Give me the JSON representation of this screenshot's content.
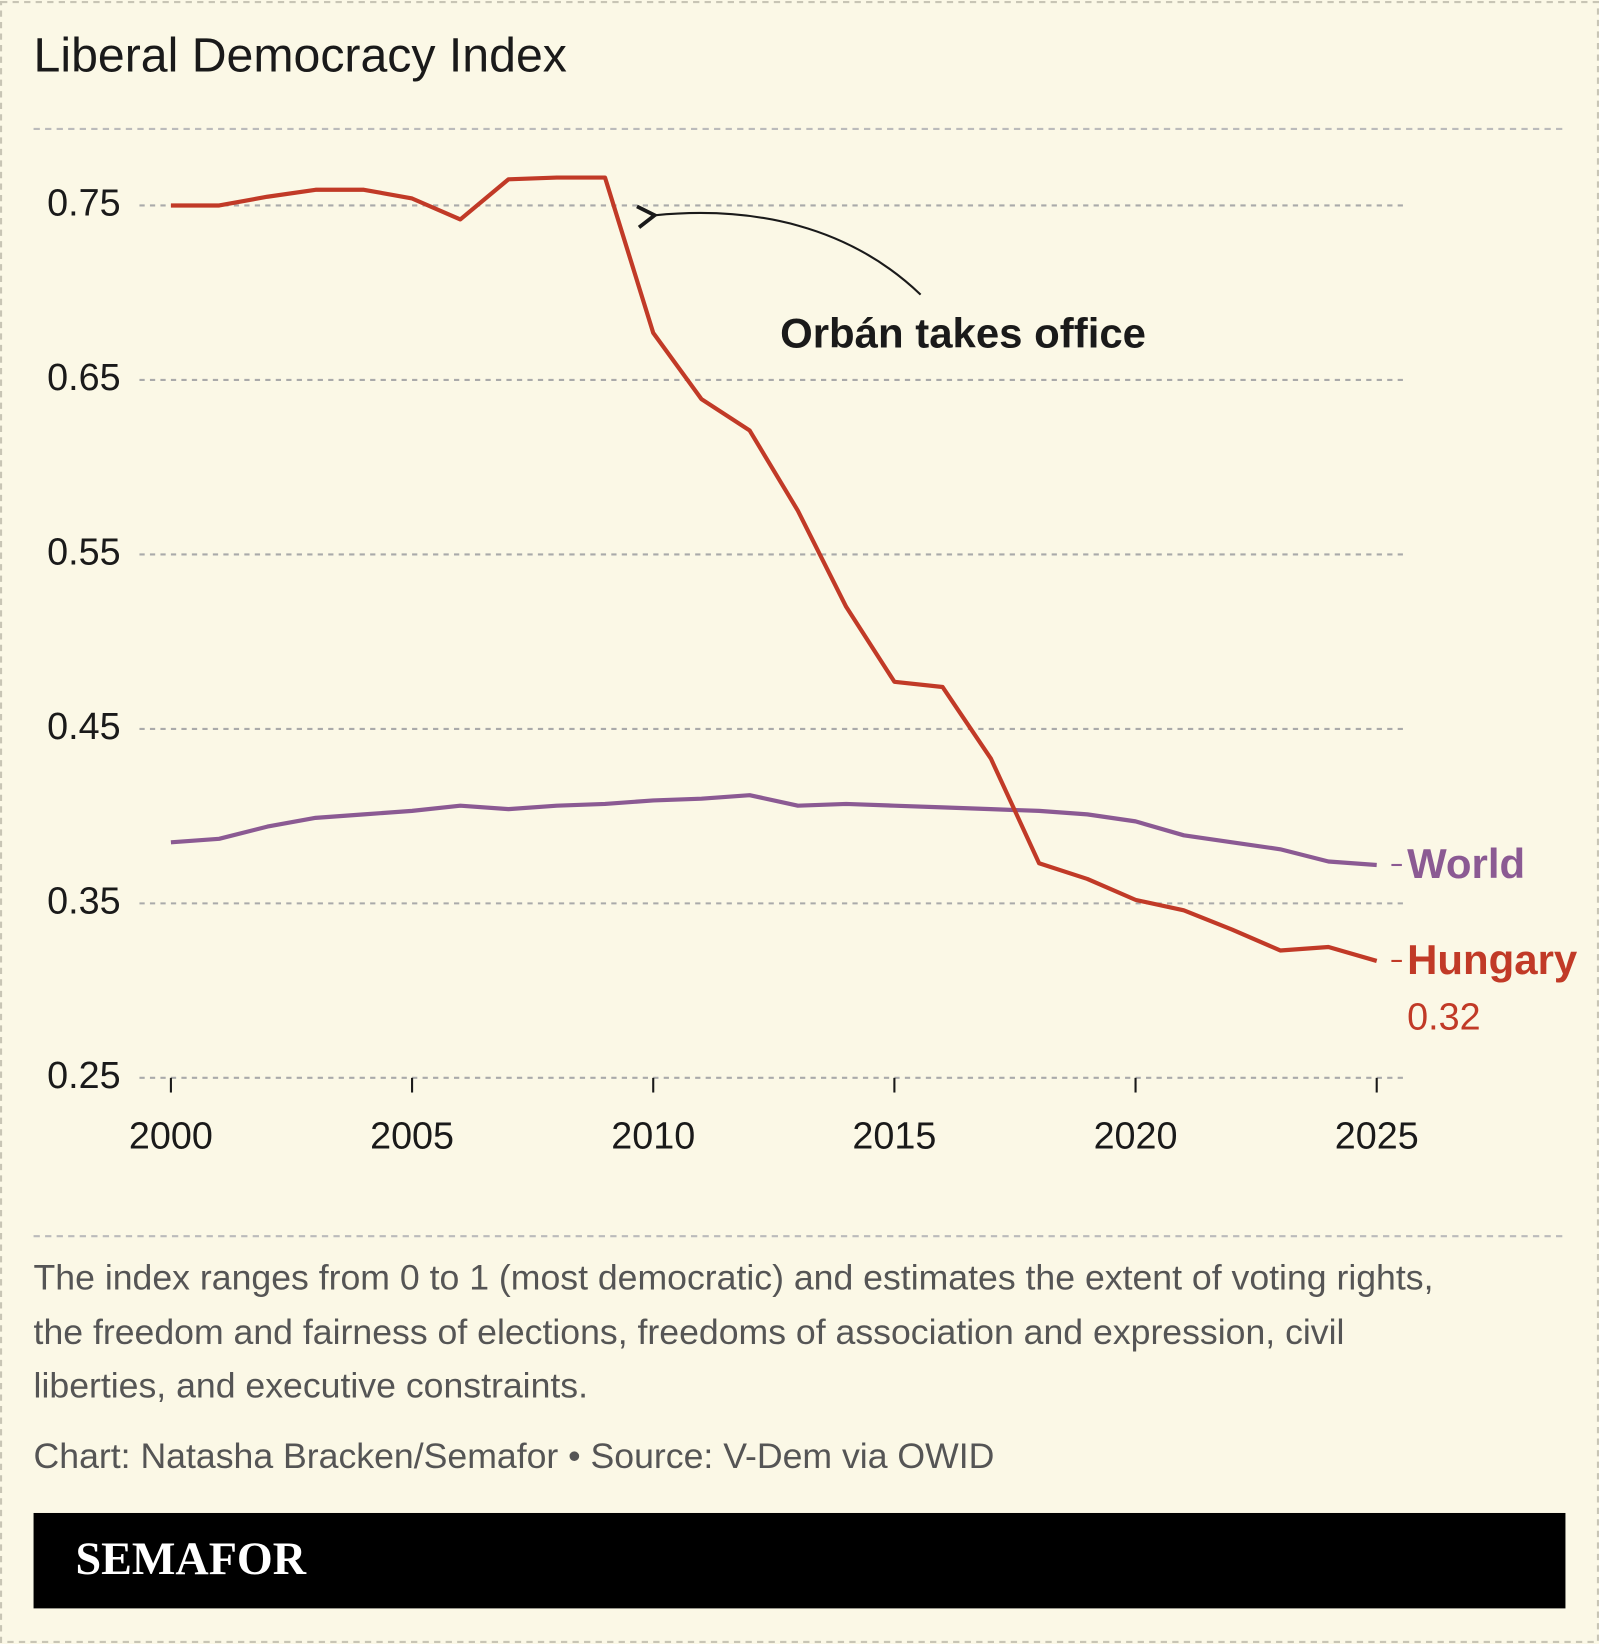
{
  "chart_data": {
    "type": "line",
    "title": "Liberal Democracy Index",
    "x": [
      2000,
      2001,
      2002,
      2003,
      2004,
      2005,
      2006,
      2007,
      2008,
      2009,
      2010,
      2011,
      2012,
      2013,
      2014,
      2015,
      2016,
      2017,
      2018,
      2019,
      2020,
      2021,
      2022,
      2023,
      2024,
      2025
    ],
    "series": [
      {
        "name": "World",
        "color": "#8b5a93",
        "values": [
          0.385,
          0.387,
          0.394,
          0.399,
          0.401,
          0.403,
          0.406,
          0.404,
          0.406,
          0.407,
          0.409,
          0.41,
          0.412,
          0.406,
          0.407,
          0.406,
          0.405,
          0.404,
          0.403,
          0.401,
          0.397,
          0.389,
          0.385,
          0.381,
          0.374,
          0.372
        ]
      },
      {
        "name": "Hungary",
        "color": "#c13a27",
        "values": [
          0.75,
          0.75,
          0.755,
          0.759,
          0.759,
          0.754,
          0.742,
          0.765,
          0.766,
          0.766,
          0.677,
          0.639,
          0.621,
          0.575,
          0.52,
          0.477,
          0.474,
          0.433,
          0.373,
          0.364,
          0.352,
          0.346,
          0.335,
          0.323,
          0.325,
          0.317
        ],
        "value_labels": [
          null,
          null,
          null,
          null,
          null,
          null,
          null,
          null,
          null,
          null,
          null,
          null,
          null,
          null,
          null,
          null,
          null,
          null,
          null,
          null,
          null,
          null,
          null,
          null,
          null,
          "0.32"
        ]
      }
    ],
    "xlim": [
      2000,
      2025
    ],
    "xticks": [
      2000,
      2005,
      2010,
      2015,
      2020,
      2025
    ],
    "ylim": [
      0.25,
      0.75
    ],
    "yticks": [
      0.75,
      0.65,
      0.55,
      0.45,
      0.35,
      0.25
    ],
    "grid": true,
    "annotation": {
      "text": "Orbán takes office",
      "x": 2009.9,
      "y": 0.76
    },
    "note": [
      "The index ranges from 0 to 1 (most democratic) and estimates the extent of voting rights,",
      "the freedom and fairness of elections, freedoms of association and expression, civil",
      "liberties, and executive constraints."
    ],
    "credit": "Chart: Natasha Bracken/Semafor • Source: V-Dem via OWID",
    "brand": "SEMAFOR"
  }
}
